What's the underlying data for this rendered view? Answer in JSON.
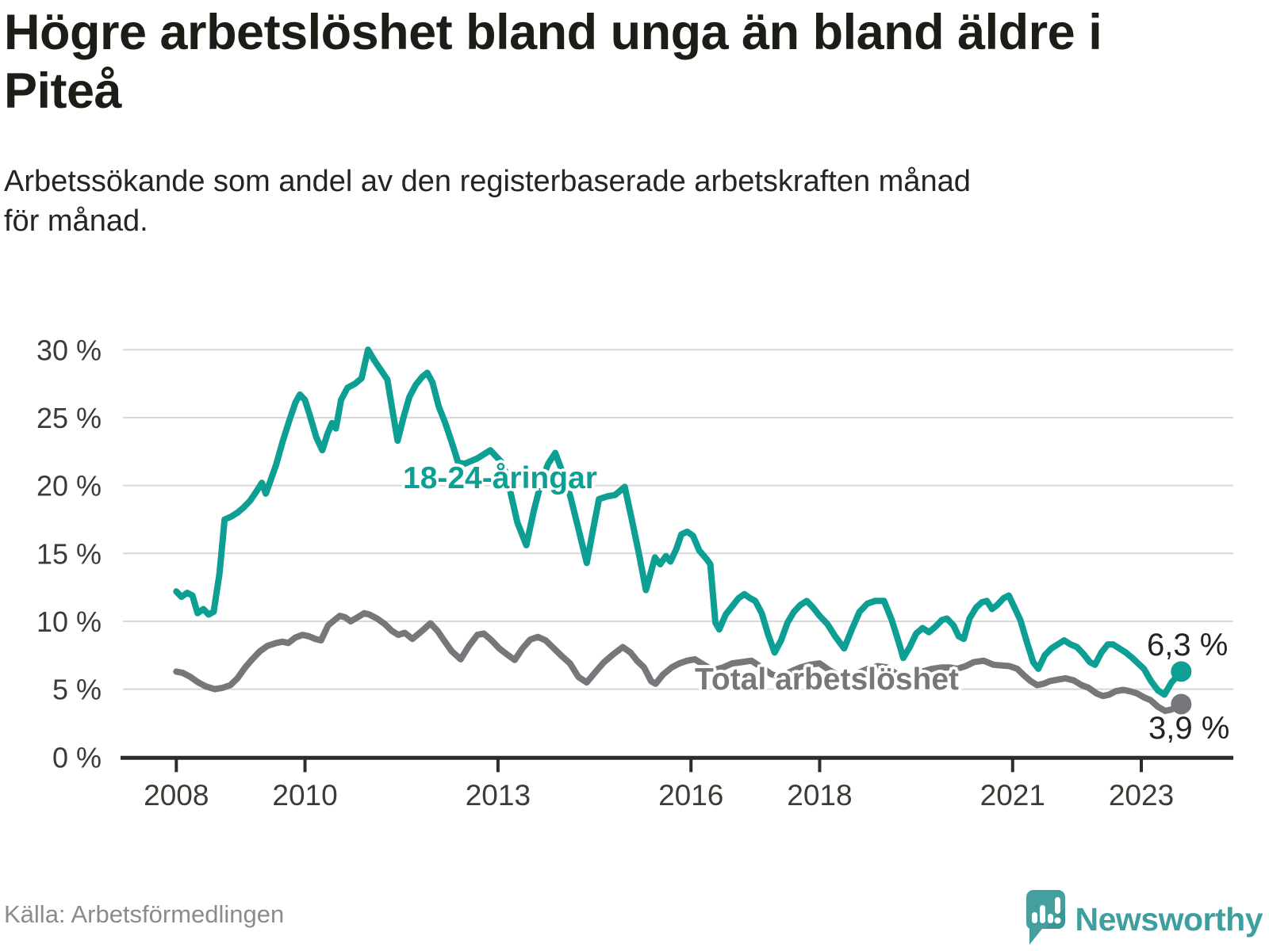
{
  "header": {
    "title_lines": [
      "Högre arbetslöshet bland unga än bland äldre i",
      "Piteå"
    ],
    "subtitle_lines": [
      "Arbetssökande som andel av den registerbaserade arbetskraften månad",
      "för månad."
    ]
  },
  "footer": {
    "source": "Källa: Arbetsförmedlingen",
    "brand": "Newsworthy",
    "brand_icon": "speech-bubble-bar-chart-icon",
    "brand_color": "#3F9F9E"
  },
  "colors": {
    "youth_line": "#0D9E94",
    "total_line": "#76777A",
    "gridline": "#D8D8D8",
    "axis": "#2D2D28",
    "tick_label": "#3C3C37",
    "title_text": "#1D1D18"
  },
  "chart_data": {
    "type": "line",
    "unit": "%",
    "grid": "horizontal",
    "legend_position": "inline-labels",
    "x_ticks": [
      2008,
      2010,
      2013,
      2016,
      2018,
      2021,
      2023
    ],
    "y_ticks": [
      0,
      5,
      10,
      15,
      20,
      25,
      30
    ],
    "y_tick_suffix": " %",
    "ylim": [
      0,
      30
    ],
    "xlim": [
      2007.17,
      2024.43
    ],
    "series": [
      {
        "name": "18-24-åringar",
        "color": "#0D9E94",
        "end_label": "6,3 %",
        "end_value": 6.3,
        "points": [
          [
            2008.0,
            12.2
          ],
          [
            2008.08,
            11.8
          ],
          [
            2008.17,
            12.1
          ],
          [
            2008.25,
            11.9
          ],
          [
            2008.33,
            10.6
          ],
          [
            2008.42,
            10.9
          ],
          [
            2008.5,
            10.5
          ],
          [
            2008.58,
            10.7
          ],
          [
            2008.67,
            13.5
          ],
          [
            2008.75,
            17.5
          ],
          [
            2008.85,
            17.7
          ],
          [
            2008.95,
            18.0
          ],
          [
            2009.05,
            18.4
          ],
          [
            2009.15,
            18.9
          ],
          [
            2009.25,
            19.6
          ],
          [
            2009.33,
            20.2
          ],
          [
            2009.39,
            19.4
          ],
          [
            2009.46,
            20.3
          ],
          [
            2009.55,
            21.5
          ],
          [
            2009.65,
            23.2
          ],
          [
            2009.75,
            24.7
          ],
          [
            2009.85,
            26.1
          ],
          [
            2009.92,
            26.7
          ],
          [
            2010.0,
            26.3
          ],
          [
            2010.08,
            25.1
          ],
          [
            2010.18,
            23.5
          ],
          [
            2010.27,
            22.6
          ],
          [
            2010.35,
            23.8
          ],
          [
            2010.42,
            24.6
          ],
          [
            2010.48,
            24.2
          ],
          [
            2010.56,
            26.3
          ],
          [
            2010.66,
            27.2
          ],
          [
            2010.78,
            27.5
          ],
          [
            2010.88,
            27.9
          ],
          [
            2010.98,
            30.0
          ],
          [
            2011.08,
            29.2
          ],
          [
            2011.18,
            28.5
          ],
          [
            2011.28,
            27.8
          ],
          [
            2011.36,
            25.5
          ],
          [
            2011.44,
            23.3
          ],
          [
            2011.53,
            25.0
          ],
          [
            2011.62,
            26.5
          ],
          [
            2011.72,
            27.4
          ],
          [
            2011.82,
            28.0
          ],
          [
            2011.9,
            28.3
          ],
          [
            2011.98,
            27.6
          ],
          [
            2012.08,
            25.8
          ],
          [
            2012.18,
            24.6
          ],
          [
            2012.28,
            23.2
          ],
          [
            2012.38,
            21.7
          ],
          [
            2012.48,
            21.6
          ],
          [
            2012.58,
            21.8
          ],
          [
            2012.68,
            22.0
          ],
          [
            2012.78,
            22.3
          ],
          [
            2012.88,
            22.6
          ],
          [
            2012.98,
            22.1
          ],
          [
            2013.08,
            21.6
          ],
          [
            2013.18,
            19.8
          ],
          [
            2013.3,
            17.3
          ],
          [
            2013.44,
            15.6
          ],
          [
            2013.56,
            18.2
          ],
          [
            2013.68,
            20.4
          ],
          [
            2013.78,
            21.6
          ],
          [
            2013.89,
            22.4
          ],
          [
            2014.0,
            21.0
          ],
          [
            2014.12,
            19.3
          ],
          [
            2014.24,
            17.0
          ],
          [
            2014.38,
            14.3
          ],
          [
            2014.48,
            16.8
          ],
          [
            2014.57,
            19.0
          ],
          [
            2014.7,
            19.2
          ],
          [
            2014.82,
            19.3
          ],
          [
            2014.97,
            19.9
          ],
          [
            2015.08,
            17.5
          ],
          [
            2015.19,
            15.0
          ],
          [
            2015.3,
            12.3
          ],
          [
            2015.44,
            14.7
          ],
          [
            2015.52,
            14.2
          ],
          [
            2015.61,
            14.8
          ],
          [
            2015.68,
            14.4
          ],
          [
            2015.77,
            15.3
          ],
          [
            2015.85,
            16.4
          ],
          [
            2015.94,
            16.6
          ],
          [
            2016.03,
            16.3
          ],
          [
            2016.13,
            15.2
          ],
          [
            2016.24,
            14.6
          ],
          [
            2016.3,
            14.2
          ],
          [
            2016.38,
            9.9
          ],
          [
            2016.44,
            9.4
          ],
          [
            2016.54,
            10.5
          ],
          [
            2016.64,
            11.1
          ],
          [
            2016.74,
            11.7
          ],
          [
            2016.83,
            12.0
          ],
          [
            2016.92,
            11.7
          ],
          [
            2017.0,
            11.5
          ],
          [
            2017.1,
            10.6
          ],
          [
            2017.2,
            9.0
          ],
          [
            2017.3,
            7.7
          ],
          [
            2017.4,
            8.6
          ],
          [
            2017.5,
            9.9
          ],
          [
            2017.6,
            10.7
          ],
          [
            2017.7,
            11.2
          ],
          [
            2017.8,
            11.5
          ],
          [
            2017.9,
            11.0
          ],
          [
            2018.0,
            10.4
          ],
          [
            2018.12,
            9.8
          ],
          [
            2018.24,
            8.9
          ],
          [
            2018.38,
            8.0
          ],
          [
            2018.5,
            9.4
          ],
          [
            2018.62,
            10.7
          ],
          [
            2018.74,
            11.3
          ],
          [
            2018.86,
            11.5
          ],
          [
            2019.0,
            11.5
          ],
          [
            2019.12,
            10.1
          ],
          [
            2019.22,
            8.6
          ],
          [
            2019.3,
            7.3
          ],
          [
            2019.4,
            8.1
          ],
          [
            2019.5,
            9.1
          ],
          [
            2019.6,
            9.5
          ],
          [
            2019.7,
            9.2
          ],
          [
            2019.8,
            9.6
          ],
          [
            2019.9,
            10.1
          ],
          [
            2019.98,
            10.2
          ],
          [
            2020.08,
            9.7
          ],
          [
            2020.16,
            8.9
          ],
          [
            2020.24,
            8.7
          ],
          [
            2020.33,
            10.2
          ],
          [
            2020.43,
            11.0
          ],
          [
            2020.52,
            11.4
          ],
          [
            2020.6,
            11.5
          ],
          [
            2020.68,
            10.9
          ],
          [
            2020.76,
            11.2
          ],
          [
            2020.86,
            11.7
          ],
          [
            2020.94,
            11.9
          ],
          [
            2021.03,
            11.0
          ],
          [
            2021.12,
            10.1
          ],
          [
            2021.22,
            8.5
          ],
          [
            2021.32,
            7.0
          ],
          [
            2021.4,
            6.5
          ],
          [
            2021.5,
            7.5
          ],
          [
            2021.6,
            8.0
          ],
          [
            2021.7,
            8.3
          ],
          [
            2021.8,
            8.6
          ],
          [
            2021.9,
            8.3
          ],
          [
            2022.0,
            8.1
          ],
          [
            2022.1,
            7.6
          ],
          [
            2022.2,
            7.0
          ],
          [
            2022.28,
            6.8
          ],
          [
            2022.38,
            7.7
          ],
          [
            2022.48,
            8.3
          ],
          [
            2022.56,
            8.3
          ],
          [
            2022.66,
            8.0
          ],
          [
            2022.76,
            7.7
          ],
          [
            2022.86,
            7.3
          ],
          [
            2022.95,
            6.9
          ],
          [
            2023.04,
            6.5
          ],
          [
            2023.15,
            5.6
          ],
          [
            2023.26,
            4.9
          ],
          [
            2023.36,
            4.6
          ],
          [
            2023.47,
            5.5
          ],
          [
            2023.62,
            6.3
          ]
        ]
      },
      {
        "name": "Total arbetslöshet",
        "color": "#76777A",
        "end_label": "3,9 %",
        "end_value": 3.9,
        "points": [
          [
            2008.0,
            6.3
          ],
          [
            2008.1,
            6.2
          ],
          [
            2008.22,
            5.9
          ],
          [
            2008.34,
            5.5
          ],
          [
            2008.46,
            5.2
          ],
          [
            2008.6,
            5.0
          ],
          [
            2008.72,
            5.1
          ],
          [
            2008.84,
            5.3
          ],
          [
            2008.95,
            5.8
          ],
          [
            2009.07,
            6.6
          ],
          [
            2009.18,
            7.2
          ],
          [
            2009.3,
            7.8
          ],
          [
            2009.42,
            8.2
          ],
          [
            2009.55,
            8.4
          ],
          [
            2009.65,
            8.5
          ],
          [
            2009.74,
            8.4
          ],
          [
            2009.85,
            8.8
          ],
          [
            2009.96,
            9.0
          ],
          [
            2010.06,
            8.9
          ],
          [
            2010.16,
            8.7
          ],
          [
            2010.25,
            8.6
          ],
          [
            2010.36,
            9.7
          ],
          [
            2010.46,
            10.1
          ],
          [
            2010.54,
            10.4
          ],
          [
            2010.62,
            10.3
          ],
          [
            2010.71,
            10.0
          ],
          [
            2010.82,
            10.3
          ],
          [
            2010.92,
            10.6
          ],
          [
            2011.0,
            10.5
          ],
          [
            2011.12,
            10.2
          ],
          [
            2011.24,
            9.8
          ],
          [
            2011.35,
            9.3
          ],
          [
            2011.45,
            9.0
          ],
          [
            2011.55,
            9.15
          ],
          [
            2011.67,
            8.7
          ],
          [
            2011.82,
            9.3
          ],
          [
            2011.95,
            9.85
          ],
          [
            2012.06,
            9.3
          ],
          [
            2012.16,
            8.6
          ],
          [
            2012.28,
            7.8
          ],
          [
            2012.42,
            7.2
          ],
          [
            2012.55,
            8.2
          ],
          [
            2012.68,
            9.0
          ],
          [
            2012.78,
            9.1
          ],
          [
            2012.9,
            8.6
          ],
          [
            2013.02,
            8.0
          ],
          [
            2013.13,
            7.6
          ],
          [
            2013.26,
            7.15
          ],
          [
            2013.38,
            8.0
          ],
          [
            2013.5,
            8.65
          ],
          [
            2013.62,
            8.85
          ],
          [
            2013.74,
            8.6
          ],
          [
            2013.87,
            8.0
          ],
          [
            2014.0,
            7.4
          ],
          [
            2014.12,
            6.9
          ],
          [
            2014.25,
            5.9
          ],
          [
            2014.38,
            5.5
          ],
          [
            2014.52,
            6.3
          ],
          [
            2014.65,
            7.0
          ],
          [
            2014.8,
            7.6
          ],
          [
            2014.94,
            8.1
          ],
          [
            2015.06,
            7.7
          ],
          [
            2015.16,
            7.1
          ],
          [
            2015.27,
            6.6
          ],
          [
            2015.38,
            5.6
          ],
          [
            2015.45,
            5.4
          ],
          [
            2015.57,
            6.1
          ],
          [
            2015.7,
            6.6
          ],
          [
            2015.82,
            6.9
          ],
          [
            2015.94,
            7.1
          ],
          [
            2016.06,
            7.2
          ],
          [
            2016.2,
            6.8
          ],
          [
            2016.34,
            6.4
          ],
          [
            2016.5,
            6.6
          ],
          [
            2016.64,
            6.9
          ],
          [
            2016.8,
            7.0
          ],
          [
            2016.94,
            7.1
          ],
          [
            2017.1,
            6.6
          ],
          [
            2017.25,
            6.1
          ],
          [
            2017.4,
            5.9
          ],
          [
            2017.55,
            6.3
          ],
          [
            2017.7,
            6.6
          ],
          [
            2017.85,
            6.8
          ],
          [
            2018.0,
            6.9
          ],
          [
            2018.15,
            6.4
          ],
          [
            2018.3,
            6.0
          ],
          [
            2018.45,
            5.9
          ],
          [
            2018.6,
            6.2
          ],
          [
            2018.75,
            6.5
          ],
          [
            2018.9,
            6.7
          ],
          [
            2019.05,
            6.6
          ],
          [
            2019.2,
            6.1
          ],
          [
            2019.32,
            5.7
          ],
          [
            2019.45,
            6.0
          ],
          [
            2019.6,
            6.3
          ],
          [
            2019.75,
            6.5
          ],
          [
            2019.9,
            6.6
          ],
          [
            2020.02,
            6.6
          ],
          [
            2020.14,
            6.5
          ],
          [
            2020.27,
            6.7
          ],
          [
            2020.4,
            7.0
          ],
          [
            2020.55,
            7.1
          ],
          [
            2020.7,
            6.8
          ],
          [
            2020.82,
            6.75
          ],
          [
            2020.95,
            6.7
          ],
          [
            2021.07,
            6.5
          ],
          [
            2021.18,
            6.0
          ],
          [
            2021.28,
            5.6
          ],
          [
            2021.38,
            5.3
          ],
          [
            2021.48,
            5.4
          ],
          [
            2021.58,
            5.6
          ],
          [
            2021.7,
            5.7
          ],
          [
            2021.82,
            5.8
          ],
          [
            2021.95,
            5.65
          ],
          [
            2022.07,
            5.3
          ],
          [
            2022.18,
            5.1
          ],
          [
            2022.3,
            4.7
          ],
          [
            2022.4,
            4.5
          ],
          [
            2022.5,
            4.6
          ],
          [
            2022.6,
            4.85
          ],
          [
            2022.72,
            4.95
          ],
          [
            2022.82,
            4.85
          ],
          [
            2022.93,
            4.7
          ],
          [
            2023.04,
            4.4
          ],
          [
            2023.14,
            4.2
          ],
          [
            2023.26,
            3.7
          ],
          [
            2023.37,
            3.4
          ],
          [
            2023.47,
            3.5
          ],
          [
            2023.62,
            3.9
          ]
        ]
      }
    ]
  }
}
